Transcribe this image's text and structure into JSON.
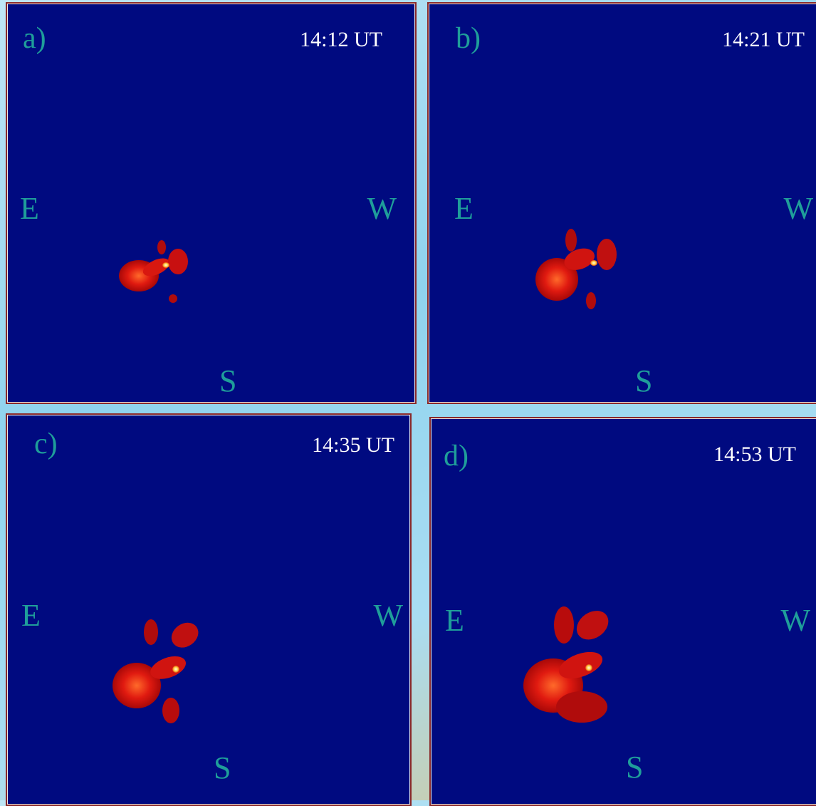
{
  "panels": [
    {
      "label": "a)",
      "time": "14:12 UT",
      "east": "E",
      "west": "W",
      "south": "S"
    },
    {
      "label": "b)",
      "time": "14:21 UT",
      "east": "E",
      "west": "W",
      "south": "S"
    },
    {
      "label": "c)",
      "time": "14:35 UT",
      "east": "E",
      "west": "W",
      "south": "S"
    },
    {
      "label": "d)",
      "time": "14:53 UT",
      "east": "E",
      "west": "W",
      "south": "S"
    }
  ]
}
